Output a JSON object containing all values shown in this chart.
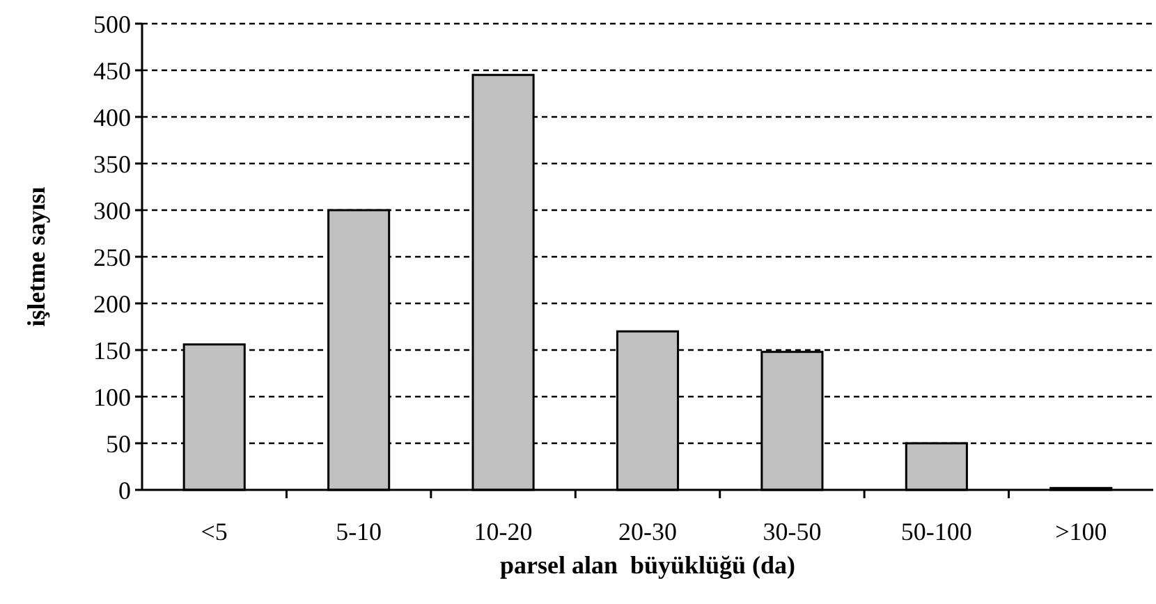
{
  "chart_data": {
    "type": "bar",
    "xlabel": "parsel alan  büyüklüğü (da)",
    "ylabel": "işletme sayısı",
    "categories": [
      "<5",
      "5-10",
      "10-20",
      "20-30",
      "30-50",
      "50-100",
      ">100"
    ],
    "values": [
      156,
      300,
      445,
      170,
      148,
      50,
      2
    ],
    "color": "#c0c0c0",
    "ylim": [
      0,
      500
    ],
    "yticks": [
      0,
      50,
      100,
      150,
      200,
      250,
      300,
      350,
      400,
      450,
      500
    ],
    "grid": "y"
  }
}
